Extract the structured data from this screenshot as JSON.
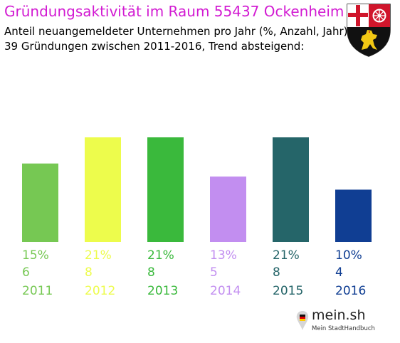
{
  "header": {
    "title": "Gründungsaktivität im Raum 55437 Ockenheim",
    "subtitle_line1": "Anteil neuangemeldeter Unternehmen pro Jahr (%, Anzahl, Jahr)",
    "subtitle_line2": "39 Gründungen zwischen 2011-2016, Trend absteigend:"
  },
  "branding": {
    "name": "mein.sh",
    "tagline": "Mein StadtHandbuch"
  },
  "chart_data": {
    "type": "bar",
    "categories": [
      "2011",
      "2012",
      "2013",
      "2014",
      "2015",
      "2016"
    ],
    "values": [
      6,
      8,
      8,
      5,
      8,
      4
    ],
    "percent_labels": [
      "15%",
      "21%",
      "21%",
      "13%",
      "21%",
      "10%"
    ],
    "count_labels": [
      "6",
      "8",
      "8",
      "5",
      "8",
      "4"
    ],
    "colors": [
      "#76c853",
      "#edfc4c",
      "#3ab93c",
      "#c28ef0",
      "#256569",
      "#103e93"
    ],
    "ylim": [
      0,
      8
    ],
    "grid": false
  }
}
